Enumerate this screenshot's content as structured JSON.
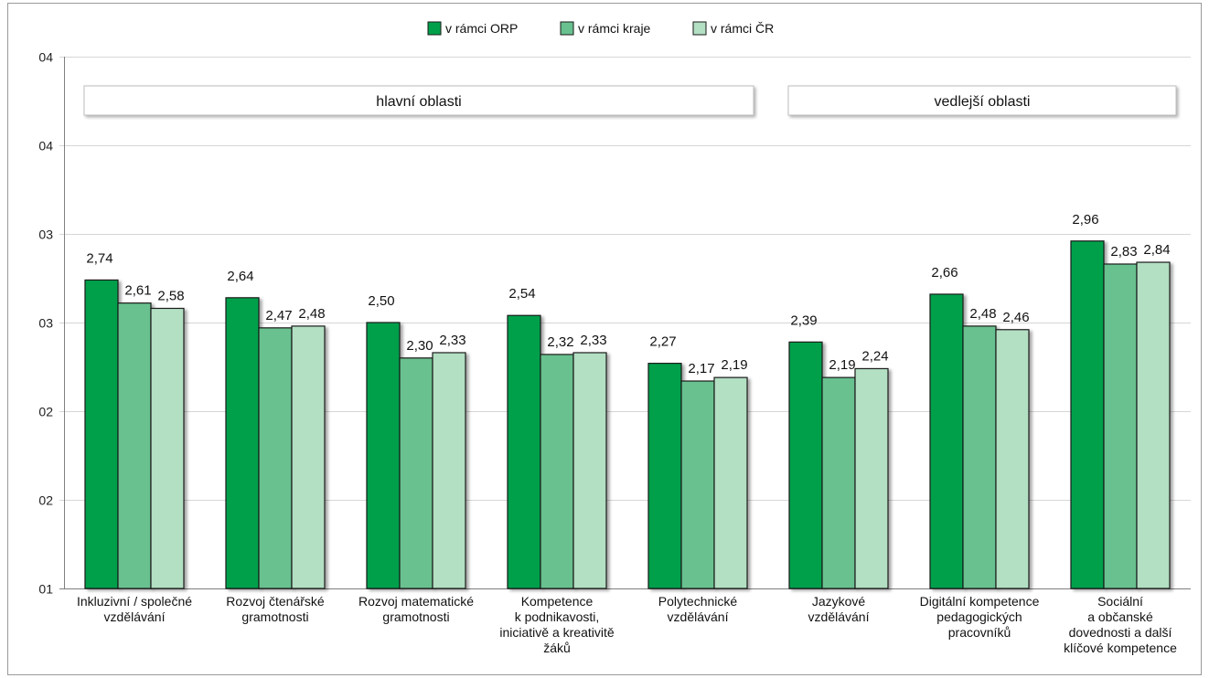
{
  "chart_data": {
    "type": "bar",
    "categories": [
      [
        "Inkluzivní / společné",
        "vzdělávání"
      ],
      [
        "Rozvoj čtenářské",
        "gramotnosti"
      ],
      [
        "Rozvoj matematické",
        "gramotnosti"
      ],
      [
        "Kompetence",
        "k podnikavosti,",
        "iniciativě a kreativitě",
        "žáků"
      ],
      [
        "Polytechnické",
        "vzdělávání"
      ],
      [
        "Jazykové",
        "vzdělávání"
      ],
      [
        "Digitální kompetence",
        "pedagogických",
        "pracovníků"
      ],
      [
        "Sociální",
        "a občanské",
        "dovednosti a další",
        "klíčové kompetence"
      ]
    ],
    "series": [
      {
        "name": "v rámci ORP",
        "color": "#00a04b",
        "values": [
          2.74,
          2.64,
          2.5,
          2.54,
          2.27,
          2.39,
          2.66,
          2.96
        ],
        "labels": [
          "2,74",
          "2,64",
          "2,50",
          "2,54",
          "2,27",
          "2,39",
          "2,66",
          "2,96"
        ]
      },
      {
        "name": "v rámci kraje",
        "color": "#69c18f",
        "values": [
          2.61,
          2.47,
          2.3,
          2.32,
          2.17,
          2.19,
          2.48,
          2.83
        ],
        "labels": [
          "2,61",
          "2,47",
          "2,30",
          "2,32",
          "2,17",
          "2,19",
          "2,48",
          "2,83"
        ]
      },
      {
        "name": "v rámci ČR",
        "color": "#b3dfc3",
        "values": [
          2.58,
          2.48,
          2.33,
          2.33,
          2.19,
          2.24,
          2.46,
          2.84
        ],
        "labels": [
          "2,58",
          "2,48",
          "2,33",
          "2,33",
          "2,19",
          "2,24",
          "2,46",
          "2,84"
        ]
      }
    ],
    "ylim": [
      1.0,
      4.0
    ],
    "yticks": [
      1.0,
      1.5,
      2.0,
      2.5,
      3.0,
      3.5,
      4.0
    ],
    "ytick_labels": [
      "01",
      "02",
      "02",
      "03",
      "03",
      "04",
      "04"
    ],
    "legend_position": "top-center",
    "grid": true,
    "groups": [
      {
        "label": "hlavní oblasti",
        "from": 0,
        "to": 4
      },
      {
        "label": "vedlejší oblasti",
        "from": 5,
        "to": 7
      }
    ]
  }
}
